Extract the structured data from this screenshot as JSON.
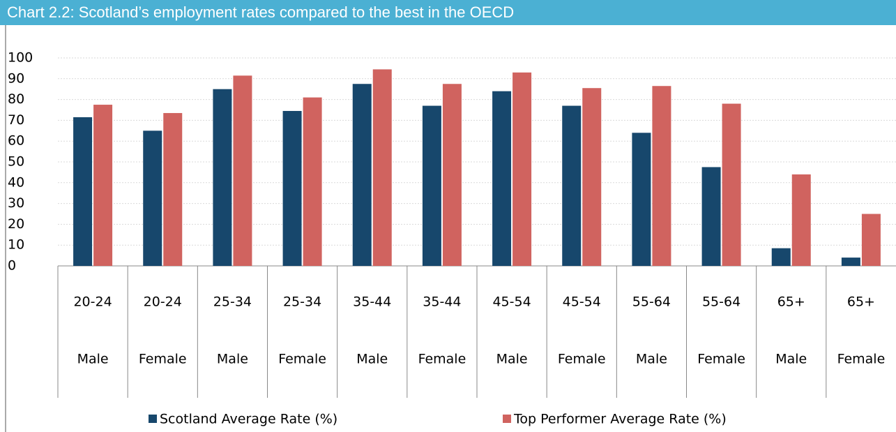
{
  "chart_data": {
    "type": "bar",
    "title": "Chart 2.2: Scotland’s employment rates compared to the best in the OECD",
    "categories": [
      [
        "20-24",
        "Male"
      ],
      [
        "20-24",
        "Female"
      ],
      [
        "25-34",
        "Male"
      ],
      [
        "25-34",
        "Female"
      ],
      [
        "35-44",
        "Male"
      ],
      [
        "35-44",
        "Female"
      ],
      [
        "45-54",
        "Male"
      ],
      [
        "45-54",
        "Female"
      ],
      [
        "55-64",
        "Male"
      ],
      [
        "55-64",
        "Female"
      ],
      [
        "65+",
        "Male"
      ],
      [
        "65+",
        "Female"
      ]
    ],
    "series": [
      {
        "name": "Scotland Average Rate (%)",
        "color": "#17476c",
        "values": [
          71.5,
          65,
          85,
          74.5,
          87.5,
          77,
          84,
          77,
          64,
          47.5,
          8.5,
          4
        ]
      },
      {
        "name": "Top Performer Average Rate (%)",
        "color": "#d0635f",
        "values": [
          77.5,
          73.5,
          91.5,
          81,
          94.5,
          87.5,
          93,
          85.5,
          86.5,
          78,
          44,
          25
        ]
      }
    ],
    "ylim": [
      0,
      100
    ],
    "yticks": [
      0,
      10,
      20,
      30,
      40,
      50,
      60,
      70,
      80,
      90,
      100
    ],
    "grid": true
  }
}
